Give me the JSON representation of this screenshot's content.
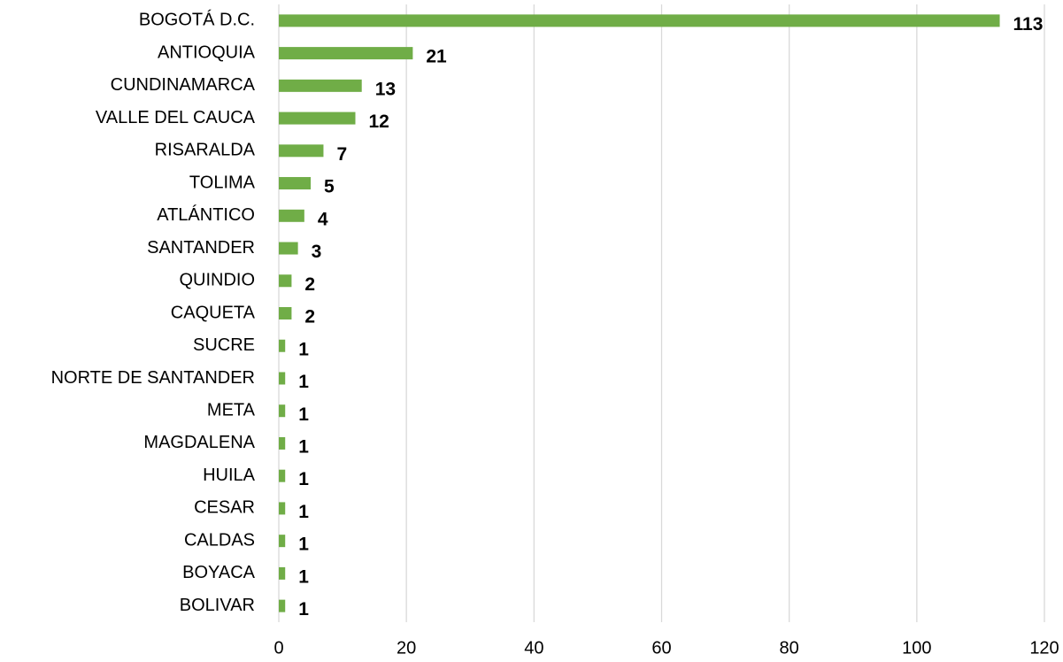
{
  "chart_data": {
    "type": "bar",
    "orientation": "horizontal",
    "categories": [
      "BOGOTÁ D.C.",
      "ANTIOQUIA",
      "CUNDINAMARCA",
      "VALLE DEL CAUCA",
      "RISARALDA",
      "TOLIMA",
      "ATLÁNTICO",
      "SANTANDER",
      "QUINDIO",
      "CAQUETA",
      "SUCRE",
      "NORTE DE SANTANDER",
      "META",
      "MAGDALENA",
      "HUILA",
      "CESAR",
      "CALDAS",
      "BOYACA",
      "BOLIVAR"
    ],
    "values": [
      113,
      21,
      13,
      12,
      7,
      5,
      4,
      3,
      2,
      2,
      1,
      1,
      1,
      1,
      1,
      1,
      1,
      1,
      1
    ],
    "color": "#70ad47",
    "xlim": [
      0,
      120
    ],
    "xticks": [
      0,
      20,
      40,
      60,
      80,
      100,
      120
    ],
    "grid": true
  }
}
